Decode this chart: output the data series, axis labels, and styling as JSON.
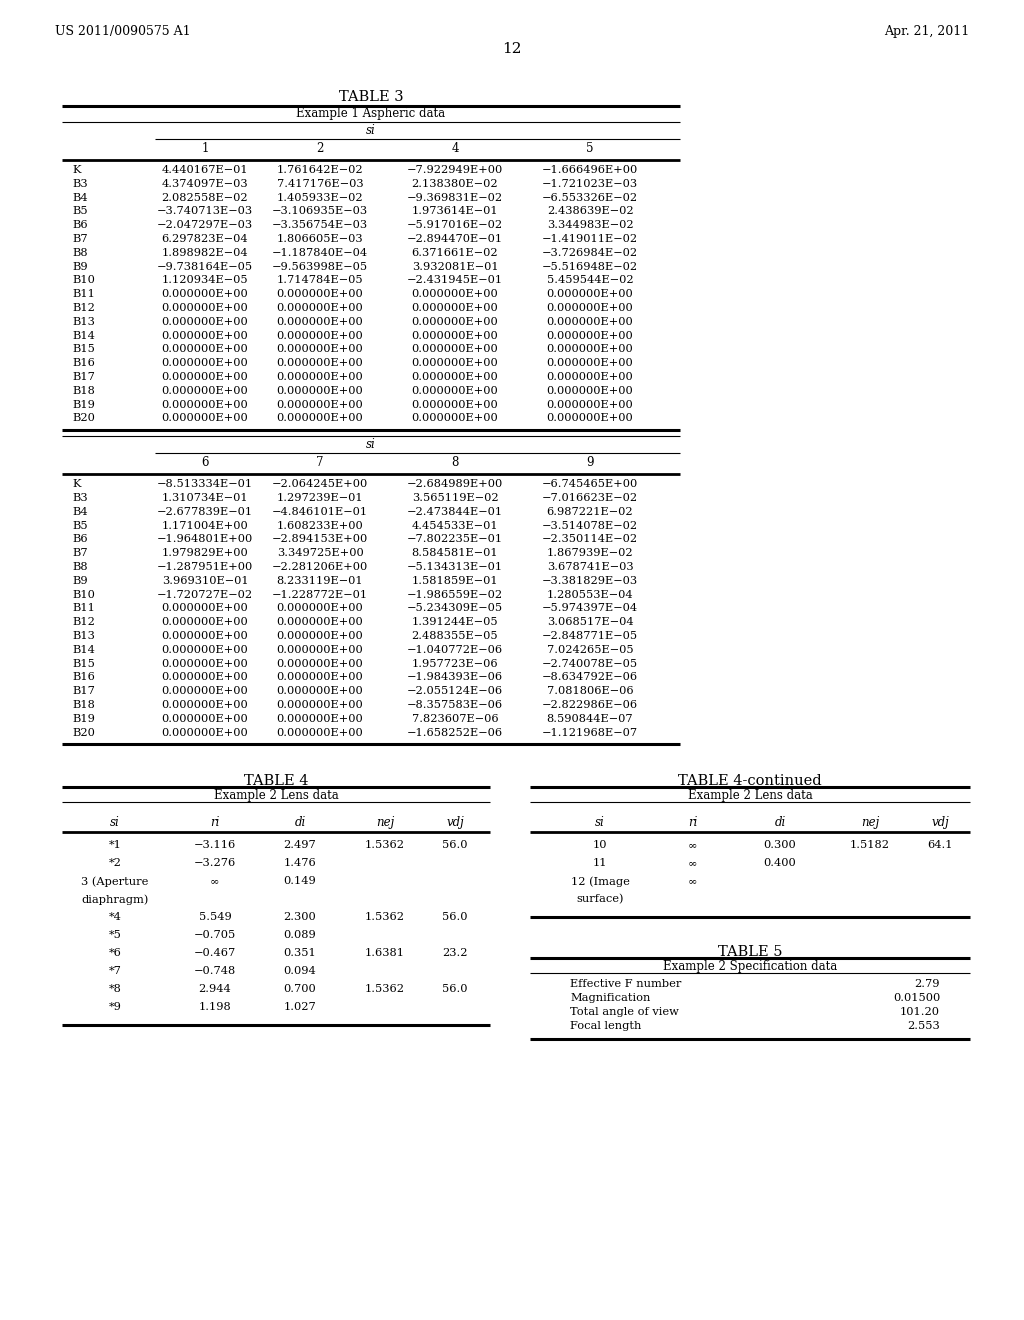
{
  "header_left": "US 2011/0090575 A1",
  "header_right": "Apr. 21, 2011",
  "page_number": "12",
  "table3_title": "TABLE 3",
  "table3_subtitle": "Example 1 Aspheric data",
  "table3_si_label": "si",
  "table3_cols1": [
    "1",
    "2",
    "4",
    "5"
  ],
  "table3_rows1": [
    [
      "K",
      "4.440167E−01",
      "1.761642E−02",
      "−7.922949E+00",
      "−1.666496E+00"
    ],
    [
      "B3",
      "4.374097E−03",
      "7.417176E−03",
      "2.138380E−02",
      "−1.721023E−03"
    ],
    [
      "B4",
      "2.082558E−02",
      "1.405933E−02",
      "−9.369831E−02",
      "−6.553326E−02"
    ],
    [
      "B5",
      "−3.740713E−03",
      "−3.106935E−03",
      "1.973614E−01",
      "2.438639E−02"
    ],
    [
      "B6",
      "−2.047297E−03",
      "−3.356754E−03",
      "−5.917016E−02",
      "3.344983E−02"
    ],
    [
      "B7",
      "6.297823E−04",
      "1.806605E−03",
      "−2.894470E−01",
      "−1.419011E−02"
    ],
    [
      "B8",
      "1.898982E−04",
      "−1.187840E−04",
      "6.371661E−02",
      "−3.726984E−02"
    ],
    [
      "B9",
      "−9.738164E−05",
      "−9.563998E−05",
      "3.932081E−01",
      "−5.516948E−02"
    ],
    [
      "B10",
      "1.120934E−05",
      "1.714784E−05",
      "−2.431945E−01",
      "5.459544E−02"
    ],
    [
      "B11",
      "0.000000E+00",
      "0.000000E+00",
      "0.000000E+00",
      "0.000000E+00"
    ],
    [
      "B12",
      "0.000000E+00",
      "0.000000E+00",
      "0.000000E+00",
      "0.000000E+00"
    ],
    [
      "B13",
      "0.000000E+00",
      "0.000000E+00",
      "0.000000E+00",
      "0.000000E+00"
    ],
    [
      "B14",
      "0.000000E+00",
      "0.000000E+00",
      "0.000000E+00",
      "0.000000E+00"
    ],
    [
      "B15",
      "0.000000E+00",
      "0.000000E+00",
      "0.000000E+00",
      "0.000000E+00"
    ],
    [
      "B16",
      "0.000000E+00",
      "0.000000E+00",
      "0.000000E+00",
      "0.000000E+00"
    ],
    [
      "B17",
      "0.000000E+00",
      "0.000000E+00",
      "0.000000E+00",
      "0.000000E+00"
    ],
    [
      "B18",
      "0.000000E+00",
      "0.000000E+00",
      "0.000000E+00",
      "0.000000E+00"
    ],
    [
      "B19",
      "0.000000E+00",
      "0.000000E+00",
      "0.000000E+00",
      "0.000000E+00"
    ],
    [
      "B20",
      "0.000000E+00",
      "0.000000E+00",
      "0.000000E+00",
      "0.000000E+00"
    ]
  ],
  "table3_si_label2": "si",
  "table3_cols2": [
    "6",
    "7",
    "8",
    "9"
  ],
  "table3_rows2": [
    [
      "K",
      "−8.513334E−01",
      "−2.064245E+00",
      "−2.684989E+00",
      "−6.745465E+00"
    ],
    [
      "B3",
      "1.310734E−01",
      "1.297239E−01",
      "3.565119E−02",
      "−7.016623E−02"
    ],
    [
      "B4",
      "−2.677839E−01",
      "−4.846101E−01",
      "−2.473844E−01",
      "6.987221E−02"
    ],
    [
      "B5",
      "1.171004E+00",
      "1.608233E+00",
      "4.454533E−01",
      "−3.514078E−02"
    ],
    [
      "B6",
      "−1.964801E+00",
      "−2.894153E+00",
      "−7.802235E−01",
      "−2.350114E−02"
    ],
    [
      "B7",
      "1.979829E+00",
      "3.349725E+00",
      "8.584581E−01",
      "1.867939E−02"
    ],
    [
      "B8",
      "−1.287951E+00",
      "−2.281206E+00",
      "−5.134313E−01",
      "3.678741E−03"
    ],
    [
      "B9",
      "3.969310E−01",
      "8.233119E−01",
      "1.581859E−01",
      "−3.381829E−03"
    ],
    [
      "B10",
      "−1.720727E−02",
      "−1.228772E−01",
      "−1.986559E−02",
      "1.280553E−04"
    ],
    [
      "B11",
      "0.000000E+00",
      "0.000000E+00",
      "−5.234309E−05",
      "−5.974397E−04"
    ],
    [
      "B12",
      "0.000000E+00",
      "0.000000E+00",
      "1.391244E−05",
      "3.068517E−04"
    ],
    [
      "B13",
      "0.000000E+00",
      "0.000000E+00",
      "2.488355E−05",
      "−2.848771E−05"
    ],
    [
      "B14",
      "0.000000E+00",
      "0.000000E+00",
      "−1.040772E−06",
      "7.024265E−05"
    ],
    [
      "B15",
      "0.000000E+00",
      "0.000000E+00",
      "1.957723E−06",
      "−2.740078E−05"
    ],
    [
      "B16",
      "0.000000E+00",
      "0.000000E+00",
      "−1.984393E−06",
      "−8.634792E−06"
    ],
    [
      "B17",
      "0.000000E+00",
      "0.000000E+00",
      "−2.055124E−06",
      "7.081806E−06"
    ],
    [
      "B18",
      "0.000000E+00",
      "0.000000E+00",
      "−8.357583E−06",
      "−2.822986E−06"
    ],
    [
      "B19",
      "0.000000E+00",
      "0.000000E+00",
      "7.823607E−06",
      "8.590844E−07"
    ],
    [
      "B20",
      "0.000000E+00",
      "0.000000E+00",
      "−1.658252E−06",
      "−1.121968E−07"
    ]
  ],
  "table4_title": "TABLE 4",
  "table4_subtitle": "Example 2 Lens data",
  "table4_cols": [
    "si",
    "ri",
    "di",
    "nej",
    "vdj"
  ],
  "table4_rows": [
    [
      "*1",
      "−3.116",
      "2.497",
      "1.5362",
      "56.0"
    ],
    [
      "*2",
      "−3.276",
      "1.476",
      "",
      ""
    ],
    [
      "3 (Aperture",
      "∞",
      "0.149",
      "",
      ""
    ],
    [
      "diaphragm)",
      "",
      "",
      "",
      ""
    ],
    [
      "*4",
      "5.549",
      "2.300",
      "1.5362",
      "56.0"
    ],
    [
      "*5",
      "−0.705",
      "0.089",
      "",
      ""
    ],
    [
      "*6",
      "−0.467",
      "0.351",
      "1.6381",
      "23.2"
    ],
    [
      "*7",
      "−0.748",
      "0.094",
      "",
      ""
    ],
    [
      "*8",
      "2.944",
      "0.700",
      "1.5362",
      "56.0"
    ],
    [
      "*9",
      "1.198",
      "1.027",
      "",
      ""
    ]
  ],
  "table4cont_title": "TABLE 4-continued",
  "table4cont_subtitle": "Example 2 Lens data",
  "table4cont_cols": [
    "si",
    "ri",
    "di",
    "nej",
    "vdj"
  ],
  "table4cont_rows": [
    [
      "10",
      "∞",
      "0.300",
      "1.5182",
      "64.1"
    ],
    [
      "11",
      "∞",
      "0.400",
      "",
      ""
    ],
    [
      "12 (Image",
      "∞",
      "",
      "",
      ""
    ],
    [
      "surface)",
      "",
      "",
      "",
      ""
    ]
  ],
  "table5_title": "TABLE 5",
  "table5_subtitle": "Example 2 Specification data",
  "table5_rows": [
    [
      "Effective F number",
      "2.79"
    ],
    [
      "Magnification",
      "0.01500"
    ],
    [
      "Total angle of view",
      "101.20"
    ],
    [
      "Focal length",
      "2.553"
    ]
  ],
  "bg_color": "#ffffff",
  "text_color": "#000000"
}
